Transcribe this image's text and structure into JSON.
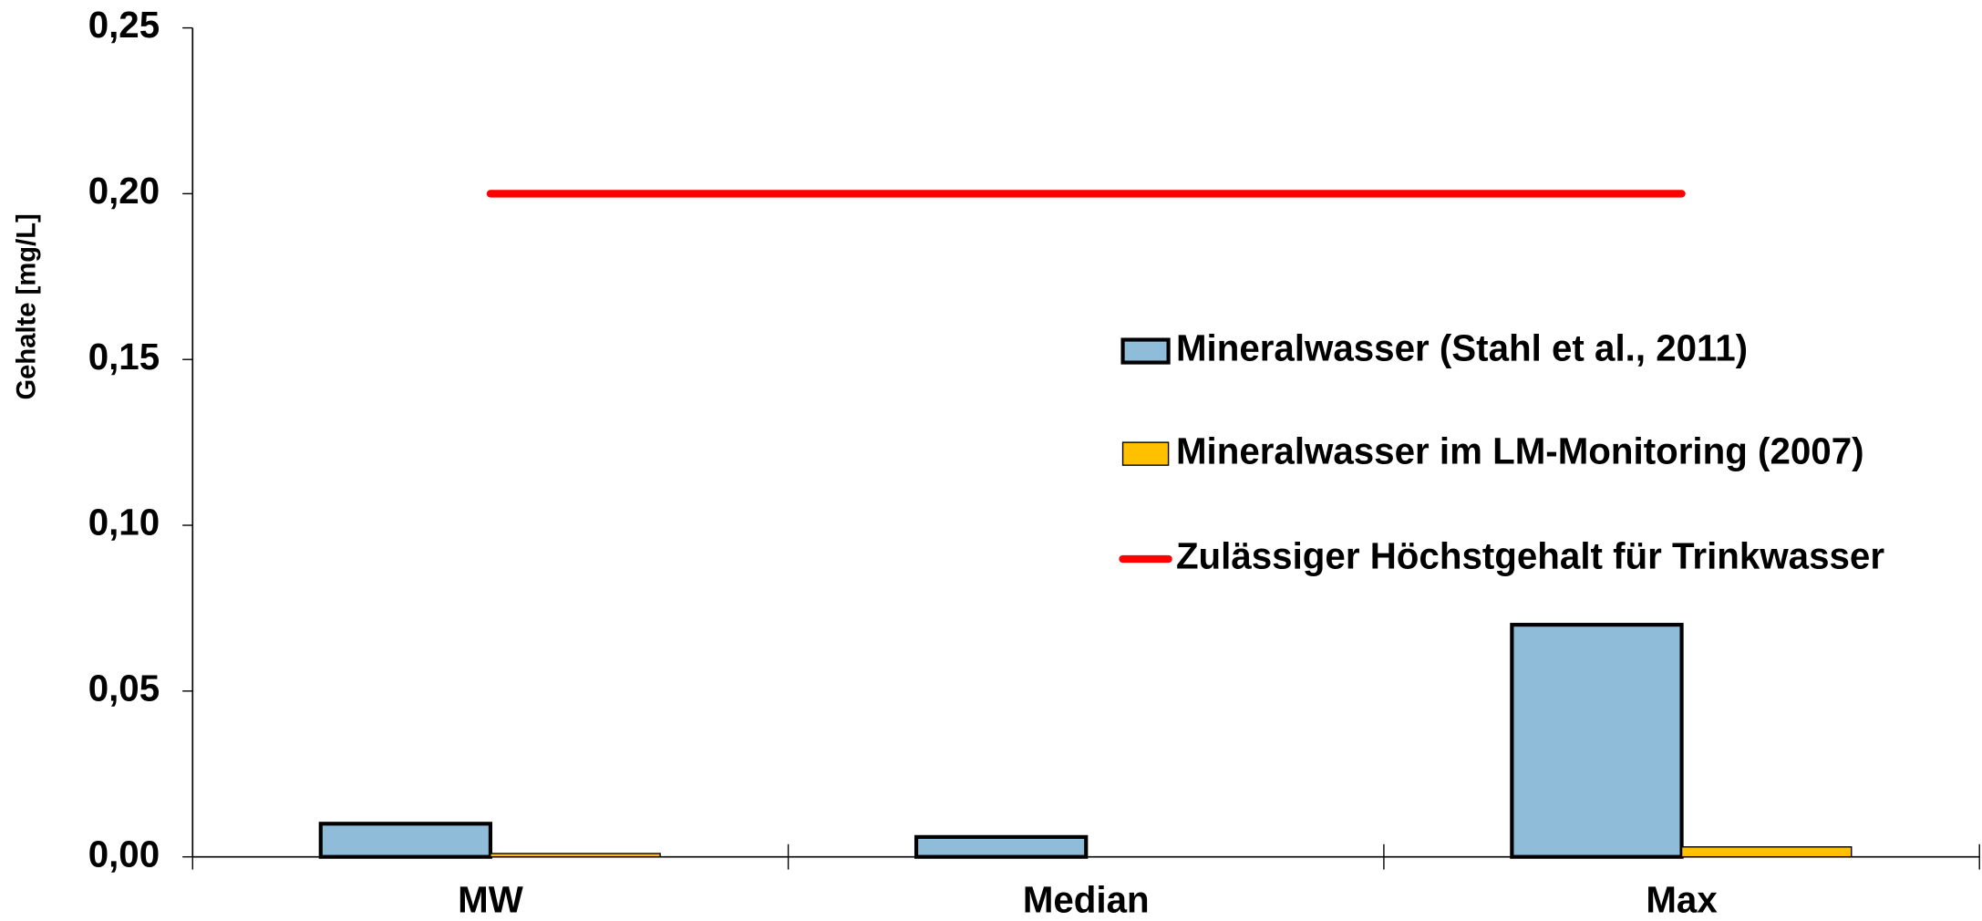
{
  "chart_data": {
    "type": "bar",
    "y_label": "Gehalte [mg/L]",
    "categories": [
      "MW",
      "Median",
      "Max"
    ],
    "series": [
      {
        "name": "Mineralwasser (Stahl et al., 2011)",
        "type": "bar",
        "color": "#8fbcd9",
        "values": [
          0.01,
          0.006,
          0.07
        ]
      },
      {
        "name": "Mineralwasser im LM-Monitoring (2007)",
        "type": "bar",
        "color": "#ffc000",
        "values": [
          0.001,
          0,
          0.003
        ]
      },
      {
        "name": "Zulässiger Höchstgehalt für Trinkwasser",
        "type": "line",
        "color": "#ff0000",
        "values": [
          0.2,
          0.2,
          0.2
        ]
      }
    ],
    "ylim": [
      0,
      0.25
    ],
    "yticks": [
      {
        "value": 0,
        "label": "0,00"
      },
      {
        "value": 0.05,
        "label": "0,05"
      },
      {
        "value": 0.1,
        "label": "0,10"
      },
      {
        "value": 0.15,
        "label": "0,15"
      },
      {
        "value": 0.2,
        "label": "0,20"
      },
      {
        "value": 0.25,
        "label": "0,25"
      }
    ]
  }
}
